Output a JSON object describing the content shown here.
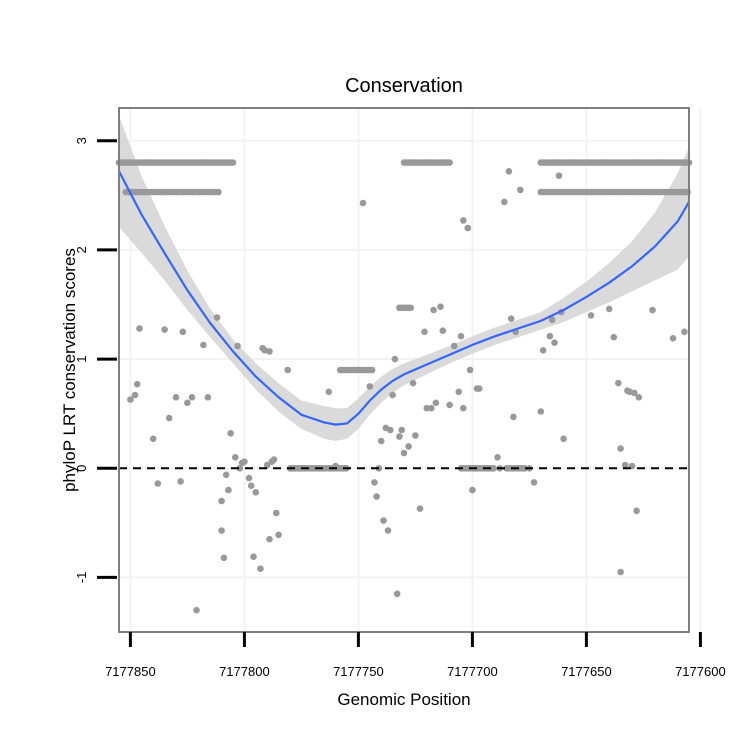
{
  "chart_data": {
    "type": "scatter",
    "title": "Conservation",
    "xlabel": "Genomic Position",
    "ylabel": "phyloP LRT conservation scores",
    "x_reversed": true,
    "xlim": [
      7177605,
      7177855
    ],
    "ylim": [
      -1.5,
      3.3
    ],
    "x_ticks": [
      7177850,
      7177800,
      7177750,
      7177700,
      7177650,
      7177600
    ],
    "x_tick_labels": [
      "7177850",
      "7177800",
      "7177750",
      "7177700",
      "7177650",
      "7177600"
    ],
    "y_ticks": [
      -1,
      0,
      1,
      2,
      3
    ],
    "y_tick_labels": [
      "-1",
      "0",
      "1",
      "2",
      "3"
    ],
    "reference_line": {
      "y": 0,
      "style": "dashed"
    },
    "grid": true,
    "colors": {
      "points": "#999999",
      "smooth": "#3366FF",
      "ribbon": "#d4d4d4",
      "panel_border": "#7f7f7f",
      "grid": "#f2f2f2"
    },
    "bands": [
      {
        "y": 2.8,
        "x_from": 7177855,
        "x_to": 7177805,
        "step": 1
      },
      {
        "y": 2.53,
        "x_from": 7177852,
        "x_to": 7177810,
        "step": 1.4
      },
      {
        "y": 2.8,
        "x_from": 7177730,
        "x_to": 7177710,
        "step": 1
      },
      {
        "y": 2.8,
        "x_from": 7177670,
        "x_to": 7177605,
        "step": 1
      },
      {
        "y": 2.53,
        "x_from": 7177670,
        "x_to": 7177605,
        "step": 1.4
      },
      {
        "y": 0,
        "x_from": 7177780,
        "x_to": 7177755,
        "step": 0.8
      },
      {
        "y": 0,
        "x_from": 7177705,
        "x_to": 7177690,
        "step": 0.8
      },
      {
        "y": 0,
        "x_from": 7177685,
        "x_to": 7177677,
        "step": 0.8
      },
      {
        "y": 0.9,
        "x_from": 7177758,
        "x_to": 7177744,
        "step": 1
      },
      {
        "y": 1.47,
        "x_from": 7177732,
        "x_to": 7177727,
        "step": 1
      }
    ],
    "points": [
      [
        7177850,
        0.63
      ],
      [
        7177848,
        0.67
      ],
      [
        7177847,
        0.77
      ],
      [
        7177846,
        1.28
      ],
      [
        7177840,
        0.27
      ],
      [
        7177838,
        -0.14
      ],
      [
        7177835,
        1.27
      ],
      [
        7177833,
        0.46
      ],
      [
        7177830,
        0.65
      ],
      [
        7177828,
        -0.12
      ],
      [
        7177827,
        1.25
      ],
      [
        7177825,
        0.6
      ],
      [
        7177823,
        0.65
      ],
      [
        7177821,
        -1.3
      ],
      [
        7177818,
        1.13
      ],
      [
        7177816,
        0.65
      ],
      [
        7177812,
        1.38
      ],
      [
        7177810,
        -0.3
      ],
      [
        7177810,
        -0.57
      ],
      [
        7177809,
        -0.82
      ],
      [
        7177808,
        -0.06
      ],
      [
        7177807,
        -0.2
      ],
      [
        7177806,
        0.32
      ],
      [
        7177804,
        0.1
      ],
      [
        7177803,
        1.12
      ],
      [
        7177802,
        0.0
      ],
      [
        7177801,
        0.05
      ],
      [
        7177800,
        0.06
      ],
      [
        7177798,
        -0.09
      ],
      [
        7177797,
        -0.16
      ],
      [
        7177796,
        -0.81
      ],
      [
        7177795,
        -0.22
      ],
      [
        7177793,
        -0.92
      ],
      [
        7177792,
        1.1
      ],
      [
        7177791,
        1.08
      ],
      [
        7177790,
        0.03
      ],
      [
        7177789,
        1.07
      ],
      [
        7177789,
        -0.65
      ],
      [
        7177788,
        0.06
      ],
      [
        7177787,
        0.08
      ],
      [
        7177786,
        -0.41
      ],
      [
        7177785,
        -0.61
      ],
      [
        7177781,
        0.9
      ],
      [
        7177775,
        0.0
      ],
      [
        7177763,
        0.7
      ],
      [
        7177760,
        0.02
      ],
      [
        7177756,
        0.0
      ],
      [
        7177748,
        2.43
      ],
      [
        7177745,
        0.75
      ],
      [
        7177743,
        -0.13
      ],
      [
        7177742,
        -0.26
      ],
      [
        7177741,
        0.0
      ],
      [
        7177740,
        0.25
      ],
      [
        7177739,
        -0.48
      ],
      [
        7177738,
        0.37
      ],
      [
        7177737,
        -0.57
      ],
      [
        7177736,
        0.35
      ],
      [
        7177735,
        0.67
      ],
      [
        7177734,
        1.0
      ],
      [
        7177733,
        -1.15
      ],
      [
        7177732,
        0.29
      ],
      [
        7177731,
        0.35
      ],
      [
        7177730,
        0.14
      ],
      [
        7177728,
        0.2
      ],
      [
        7177726,
        0.78
      ],
      [
        7177725,
        0.3
      ],
      [
        7177723,
        -0.37
      ],
      [
        7177721,
        1.25
      ],
      [
        7177720,
        0.55
      ],
      [
        7177718,
        0.55
      ],
      [
        7177717,
        1.45
      ],
      [
        7177716,
        0.6
      ],
      [
        7177714,
        1.48
      ],
      [
        7177713,
        1.26
      ],
      [
        7177710,
        0.58
      ],
      [
        7177708,
        1.12
      ],
      [
        7177706,
        0.7
      ],
      [
        7177705,
        1.21
      ],
      [
        7177704,
        0.55
      ],
      [
        7177704,
        2.27
      ],
      [
        7177702,
        2.2
      ],
      [
        7177701,
        0.9
      ],
      [
        7177700,
        -0.2
      ],
      [
        7177698,
        0.73
      ],
      [
        7177697,
        0.73
      ],
      [
        7177689,
        0.1
      ],
      [
        7177688,
        0.0
      ],
      [
        7177686,
        2.44
      ],
      [
        7177684,
        2.72
      ],
      [
        7177683,
        1.37
      ],
      [
        7177682,
        0.47
      ],
      [
        7177681,
        1.25
      ],
      [
        7177679,
        2.55
      ],
      [
        7177675,
        0.0
      ],
      [
        7177673,
        -0.13
      ],
      [
        7177670,
        0.52
      ],
      [
        7177669,
        1.08
      ],
      [
        7177666,
        1.21
      ],
      [
        7177665,
        1.36
      ],
      [
        7177664,
        1.15
      ],
      [
        7177662,
        2.68
      ],
      [
        7177661,
        1.43
      ],
      [
        7177660,
        0.27
      ],
      [
        7177648,
        1.4
      ],
      [
        7177640,
        1.46
      ],
      [
        7177638,
        1.2
      ],
      [
        7177636,
        0.78
      ],
      [
        7177635,
        0.18
      ],
      [
        7177635,
        -0.95
      ],
      [
        7177633,
        0.03
      ],
      [
        7177632,
        0.71
      ],
      [
        7177631,
        0.7
      ],
      [
        7177630,
        0.02
      ],
      [
        7177629,
        0.69
      ],
      [
        7177628,
        -0.39
      ],
      [
        7177627,
        0.65
      ],
      [
        7177621,
        1.45
      ],
      [
        7177612,
        1.19
      ],
      [
        7177607,
        1.25
      ]
    ],
    "smooth": {
      "x": [
        7177855,
        7177845,
        7177835,
        7177825,
        7177815,
        7177805,
        7177795,
        7177785,
        7177775,
        7177765,
        7177760,
        7177755,
        7177750,
        7177745,
        7177740,
        7177735,
        7177730,
        7177720,
        7177710,
        7177700,
        7177690,
        7177680,
        7177670,
        7177660,
        7177650,
        7177640,
        7177630,
        7177620,
        7177610,
        7177605
      ],
      "y": [
        2.72,
        2.32,
        1.97,
        1.63,
        1.33,
        1.07,
        0.84,
        0.65,
        0.49,
        0.42,
        0.4,
        0.41,
        0.5,
        0.62,
        0.72,
        0.8,
        0.86,
        0.95,
        1.04,
        1.13,
        1.21,
        1.28,
        1.35,
        1.45,
        1.57,
        1.7,
        1.85,
        2.03,
        2.26,
        2.44
      ],
      "lower": [
        2.21,
        1.97,
        1.72,
        1.45,
        1.2,
        0.96,
        0.72,
        0.52,
        0.36,
        0.27,
        0.25,
        0.27,
        0.36,
        0.49,
        0.6,
        0.69,
        0.76,
        0.86,
        0.96,
        1.05,
        1.13,
        1.2,
        1.27,
        1.34,
        1.43,
        1.52,
        1.62,
        1.72,
        1.82,
        1.94
      ],
      "upper": [
        3.23,
        2.67,
        2.22,
        1.81,
        1.46,
        1.18,
        0.96,
        0.78,
        0.62,
        0.57,
        0.55,
        0.55,
        0.64,
        0.75,
        0.84,
        0.91,
        0.96,
        1.04,
        1.12,
        1.21,
        1.29,
        1.36,
        1.43,
        1.56,
        1.71,
        1.88,
        2.08,
        2.34,
        2.7,
        2.94
      ]
    }
  }
}
